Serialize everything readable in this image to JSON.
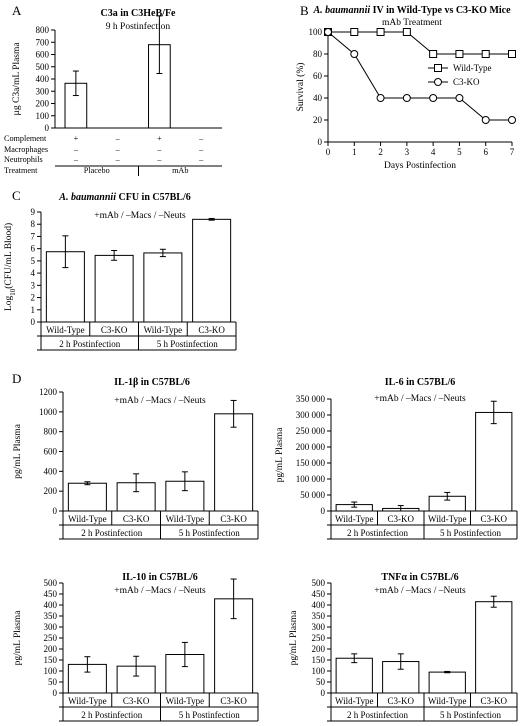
{
  "panel_letters": [
    "A",
    "B",
    "C",
    "D"
  ],
  "chart_data": [
    {
      "panel": "A",
      "type": "bar",
      "title": "C3a in C3HeB/Fe",
      "subtitle": "9 h Postinfection",
      "ylabel": "µg C3a/mL Plasma",
      "ylim": [
        0,
        800
      ],
      "yticks": [
        "0",
        "100",
        "200",
        "300",
        "400",
        "500",
        "600",
        "700",
        "800"
      ],
      "categories": [
        "Placebo",
        "Placebo",
        "mAb",
        "mAb"
      ],
      "values": [
        365,
        0,
        680,
        0
      ],
      "errors": [
        100,
        0,
        235,
        0
      ],
      "table": {
        "row_labels": [
          "Complement",
          "Macrophages",
          "Neutrophils",
          "Treatment"
        ],
        "columns": [
          [
            "+",
            "–",
            "–"
          ],
          [
            "–",
            "–",
            "–"
          ],
          [
            "+",
            "–",
            "–"
          ],
          [
            "–",
            "–",
            "–"
          ]
        ],
        "treatment_groups": [
          "Placebo",
          "mAb"
        ]
      }
    },
    {
      "panel": "B",
      "type": "line",
      "title_italic": "A. baumannii",
      "title_rest": " IV in Wild-Type vs C3-KO Mice",
      "subtitle": "mAb Treatment",
      "xlabel": "Days Postinfection",
      "ylabel": "Survival (%)",
      "xlim": [
        0,
        7
      ],
      "ylim": [
        0,
        100
      ],
      "xticks": [
        "0",
        "1",
        "2",
        "3",
        "4",
        "5",
        "6",
        "7"
      ],
      "yticks": [
        "0",
        "20",
        "40",
        "60",
        "80",
        "100"
      ],
      "legend_position": "right",
      "series": [
        {
          "name": "Wild-Type",
          "marker": "square",
          "x": [
            0,
            1,
            2,
            3,
            4,
            5,
            6,
            7
          ],
          "values": [
            100,
            100,
            100,
            100,
            80,
            80,
            80,
            80
          ]
        },
        {
          "name": "C3-KO",
          "marker": "circle",
          "x": [
            0,
            1,
            2,
            3,
            4,
            5,
            6,
            7
          ],
          "values": [
            100,
            80,
            40,
            40,
            40,
            40,
            20,
            20
          ]
        }
      ]
    },
    {
      "panel": "C",
      "type": "bar",
      "title_italic": "A. baumannii",
      "title_rest": " CFU in C57BL/6",
      "annotation": "+mAb / –Macs / –Neuts",
      "ylabel": "Log10(CFU/mL Blood)",
      "ylim": [
        0,
        9
      ],
      "yticks": [
        "0",
        "1",
        "2",
        "3",
        "4",
        "5",
        "6",
        "7",
        "8",
        "9"
      ],
      "categories": [
        "Wild-Type",
        "C3-KO",
        "Wild-Type",
        "C3-KO"
      ],
      "groups": [
        "2 h Postinfection",
        "5 h Postinfection"
      ],
      "values": [
        5.75,
        5.45,
        5.65,
        8.4
      ],
      "errors": [
        1.3,
        0.4,
        0.3,
        0.07
      ]
    },
    {
      "panel": "D",
      "type": "bar",
      "title": "IL-1β in C57BL/6",
      "annotation": "+mAb / –Macs / –Neuts",
      "ylabel": "pg/mL Plasma",
      "ylim": [
        0,
        1200
      ],
      "yticks": [
        "0",
        "200",
        "400",
        "600",
        "800",
        "1000",
        "1200"
      ],
      "categories": [
        "Wild-Type",
        "C3-KO",
        "Wild-Type",
        "C3-KO"
      ],
      "groups": [
        "2 h Postinfection",
        "5 h Postinfection"
      ],
      "values": [
        280,
        285,
        300,
        980
      ],
      "errors": [
        15,
        90,
        95,
        135
      ]
    },
    {
      "panel": "D",
      "type": "bar",
      "title": "IL-6 in C57BL/6",
      "annotation": "+mAb / –Macs / –Neuts",
      "ylabel": "pg/mL Plasma",
      "ylim": [
        0,
        350000
      ],
      "yticks": [
        "0",
        "50 000",
        "100 000",
        "150 000",
        "200 000",
        "250 000",
        "300 000",
        "350 000"
      ],
      "categories": [
        "Wild-Type",
        "C3-KO",
        "Wild-Type",
        "C3-KO"
      ],
      "groups": [
        "2 h Postinfection",
        "5 h Postinfection"
      ],
      "values": [
        20000,
        8000,
        46000,
        308000
      ],
      "errors": [
        8000,
        9000,
        12000,
        35000
      ]
    },
    {
      "panel": "D",
      "type": "bar",
      "title": "IL-10 in C57BL/6",
      "annotation": "+mAb / –Macs / –Neuts",
      "ylabel": "pg/mL Plasma",
      "ylim": [
        0,
        500
      ],
      "yticks": [
        "0",
        "50",
        "100",
        "150",
        "200",
        "250",
        "300",
        "350",
        "400",
        "450",
        "500"
      ],
      "categories": [
        "Wild-Type",
        "C3-KO",
        "Wild-Type",
        "C3-KO"
      ],
      "groups": [
        "2 h Postinfection",
        "5 h Postinfection"
      ],
      "values": [
        130,
        122,
        175,
        428
      ],
      "errors": [
        35,
        45,
        55,
        90
      ]
    },
    {
      "panel": "D",
      "type": "bar",
      "title": "TNFα in C57BL/6",
      "annotation": "+mAb / –Macs / –Neuts",
      "ylabel": "pg/mL Plasma",
      "ylim": [
        0,
        500
      ],
      "yticks": [
        "0",
        "50",
        "100",
        "150",
        "200",
        "250",
        "300",
        "350",
        "400",
        "450",
        "500"
      ],
      "categories": [
        "Wild-Type",
        "C3-KO",
        "Wild-Type",
        "C3-KO"
      ],
      "groups": [
        "2 h Postinfection",
        "5 h Postinfection"
      ],
      "values": [
        158,
        143,
        95,
        415
      ],
      "errors": [
        20,
        35,
        3,
        25
      ]
    }
  ]
}
